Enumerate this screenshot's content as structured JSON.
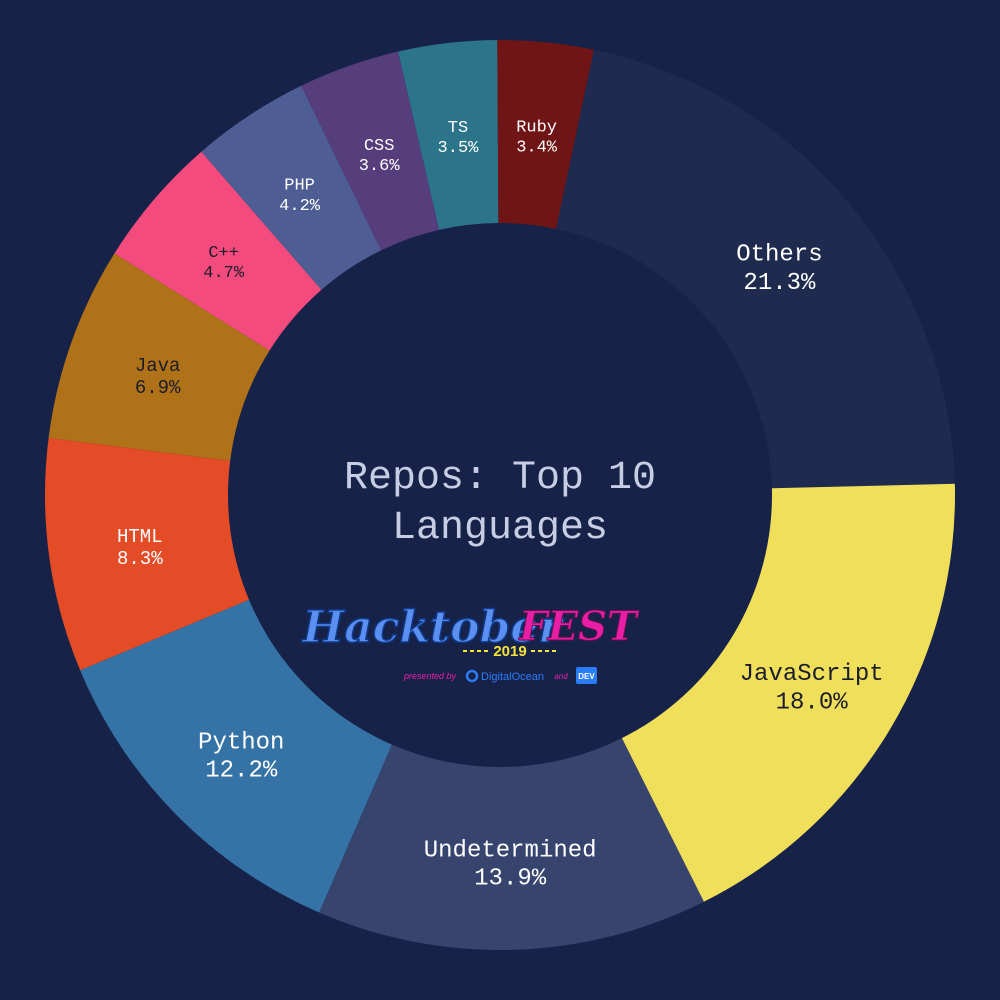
{
  "chart_data": {
    "type": "pie",
    "variant": "donut",
    "title": "Repos: Top 10 Languages",
    "title_lines": [
      "Repos: Top 10",
      "Languages"
    ],
    "legend": "none",
    "slices": [
      {
        "label": "Others",
        "value": 21.3,
        "value_label": "21.3%",
        "color": "#1e2a4e"
      },
      {
        "label": "JavaScript",
        "value": 18.0,
        "value_label": "18.0%",
        "color": "#f0df5b"
      },
      {
        "label": "Undetermined",
        "value": 13.9,
        "value_label": "13.9%",
        "color": "#36446e"
      },
      {
        "label": "Python",
        "value": 12.2,
        "value_label": "12.2%",
        "color": "#3572a5"
      },
      {
        "label": "HTML",
        "value": 8.3,
        "value_label": "8.3%",
        "color": "#e34c26"
      },
      {
        "label": "Java",
        "value": 6.9,
        "value_label": "6.9%",
        "color": "#b07219"
      },
      {
        "label": "C++",
        "value": 4.7,
        "value_label": "4.7%",
        "color": "#f34b7d"
      },
      {
        "label": "PHP",
        "value": 4.2,
        "value_label": "4.2%",
        "color": "#4f5d95"
      },
      {
        "label": "CSS",
        "value": 3.6,
        "value_label": "3.6%",
        "color": "#563d7c"
      },
      {
        "label": "TS",
        "value": 3.5,
        "value_label": "3.5%",
        "color": "#2b7489"
      },
      {
        "label": "Ruby",
        "value": 3.4,
        "value_label": "3.4%",
        "color": "#701516"
      }
    ]
  },
  "logo": {
    "wordmark": "Hacktober",
    "fest": "FEST",
    "year": "2019",
    "presented_by": "presented by",
    "sponsor1": "DigitalOcean",
    "and_text": "and",
    "sponsor2": "DEV"
  },
  "colors": {
    "background": "#172249",
    "title": "#c7cde3",
    "logo_blue": "#5b8ff0",
    "logo_pink": "#e81fa6",
    "logo_yellow": "#f6e33a",
    "sponsor_blue": "#2a7cf7"
  }
}
